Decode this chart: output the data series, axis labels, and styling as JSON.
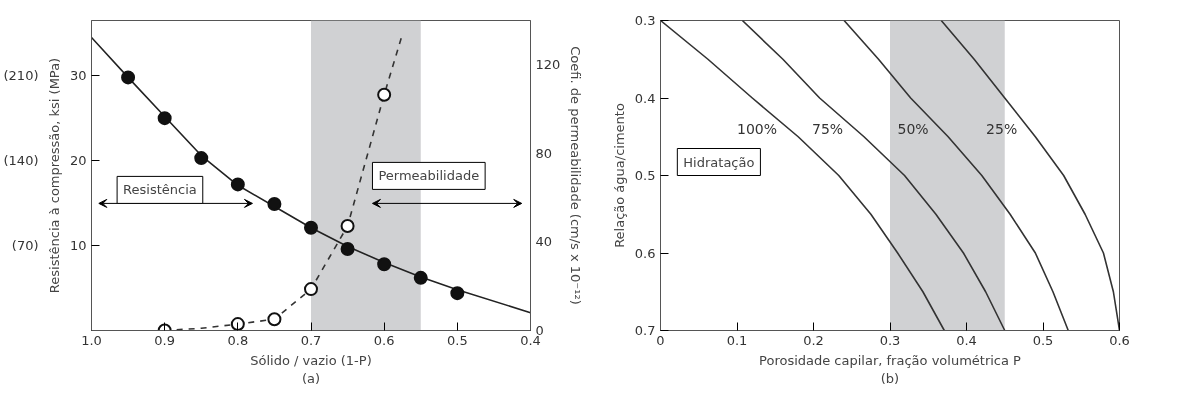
{
  "chart_data": [
    {
      "type": "scatter",
      "xlabel": "Sólido / vazio (1-P)",
      "ylabel": "Resistência à compressão, ksi (MPa)",
      "y2label": "Coefi. de permeabilidade (cm/s x 10⁻¹²)",
      "xlim": [
        1.0,
        0.4
      ],
      "xticks": [
        {
          "value": 1.0,
          "label": "1.0"
        },
        0.9,
        0.8,
        0.7,
        0.6,
        0.5,
        0.4
      ],
      "ylim": [
        0,
        36.5
      ],
      "yticks": [
        10,
        20,
        30
      ],
      "y3lim": [
        0,
        255.5
      ],
      "y3ticks": [
        {
          "value": 70,
          "label": "(70)"
        },
        {
          "value": 140,
          "label": "(140)"
        },
        {
          "value": 210,
          "label": "(210)"
        }
      ],
      "y2lim": [
        0,
        140
      ],
      "y2ticks": [
        0,
        40,
        80,
        120
      ],
      "bands": [
        {
          "axis": "x",
          "from": 0.7,
          "to": 0.55,
          "color": "#d0d1d3"
        }
      ],
      "series": [
        {
          "type": "line",
          "color": "#222222",
          "line_style": "solid",
          "x": [
            1.0,
            0.95,
            0.9,
            0.85,
            0.8,
            0.75,
            0.7,
            0.65,
            0.6,
            0.55,
            0.5,
            0.4
          ],
          "values": [
            34.5,
            29.8,
            25.2,
            20.6,
            17.1,
            14.6,
            12.1,
            9.9,
            8.0,
            6.3,
            4.8,
            2.1
          ]
        },
        {
          "type": "scatter",
          "color": "#111111",
          "marker": "circle",
          "x": [
            0.95,
            0.9,
            0.85,
            0.8,
            0.75,
            0.7,
            0.65,
            0.6,
            0.55,
            0.5
          ],
          "values": [
            29.8,
            25.0,
            20.3,
            17.2,
            14.9,
            12.1,
            9.6,
            7.8,
            6.2,
            4.4
          ]
        },
        {
          "type": "line",
          "axis": "y2",
          "color": "#333333",
          "line_style": "dashed",
          "x": [
            0.9,
            0.85,
            0.8,
            0.75,
            0.7,
            0.65,
            0.6,
            0.576
          ],
          "values": [
            0,
            1,
            2.9,
            5.1,
            18.7,
            47.2,
            106.5,
            132.8
          ]
        },
        {
          "type": "scatter",
          "axis": "y2",
          "color": "#111111",
          "marker": "circle",
          "x": [
            0.9,
            0.8,
            0.75,
            0.7,
            0.65,
            0.6
          ],
          "values": [
            0,
            2.9,
            5.1,
            18.7,
            47.2,
            106.5
          ]
        }
      ],
      "annotations": [
        "Resistência",
        "Permeabilidade",
        "(a)"
      ],
      "grid": false
    },
    {
      "type": "line",
      "xlabel": "Porosidade capilar, fração volumétrica P",
      "ylabel": "Relação água/cimento",
      "xlim": [
        0,
        0.6
      ],
      "xticks": [
        0,
        0.1,
        0.2,
        0.3,
        0.4,
        0.5,
        0.6
      ],
      "ylim": [
        0.7,
        0.3
      ],
      "yticks": [
        0.3,
        0.4,
        0.5,
        0.6,
        0.7
      ],
      "bands": [
        {
          "axis": "x",
          "from": 0.3,
          "to": 0.45,
          "color": "#d0d1d3"
        }
      ],
      "series": [
        {
          "name": "100%",
          "color": "#333333",
          "x": [
            0,
            0.062,
            0.12,
            0.18,
            0.233,
            0.275,
            0.31,
            0.343,
            0.371
          ],
          "values": [
            0.3,
            0.35,
            0.4,
            0.45,
            0.5,
            0.55,
            0.6,
            0.65,
            0.7
          ]
        },
        {
          "name": "75%",
          "color": "#333333",
          "x": [
            0.107,
            0.16,
            0.208,
            0.266,
            0.319,
            0.36,
            0.396,
            0.425,
            0.45
          ],
          "values": [
            0.3,
            0.35,
            0.4,
            0.45,
            0.5,
            0.55,
            0.6,
            0.65,
            0.7
          ]
        },
        {
          "name": "50%",
          "color": "#333333",
          "x": [
            0.24,
            0.285,
            0.327,
            0.376,
            0.42,
            0.457,
            0.49,
            0.513,
            0.533
          ],
          "values": [
            0.3,
            0.35,
            0.4,
            0.45,
            0.5,
            0.55,
            0.6,
            0.65,
            0.7
          ]
        },
        {
          "name": "25%",
          "color": "#333333",
          "x": [
            0.367,
            0.41,
            0.45,
            0.49,
            0.527,
            0.555,
            0.579,
            0.592,
            0.6
          ],
          "values": [
            0.3,
            0.35,
            0.4,
            0.45,
            0.5,
            0.55,
            0.6,
            0.65,
            0.7
          ]
        }
      ],
      "annotations": [
        "Hidratação",
        "(b)"
      ],
      "grid": false,
      "line_style": "solid",
      "marker": "none"
    }
  ]
}
